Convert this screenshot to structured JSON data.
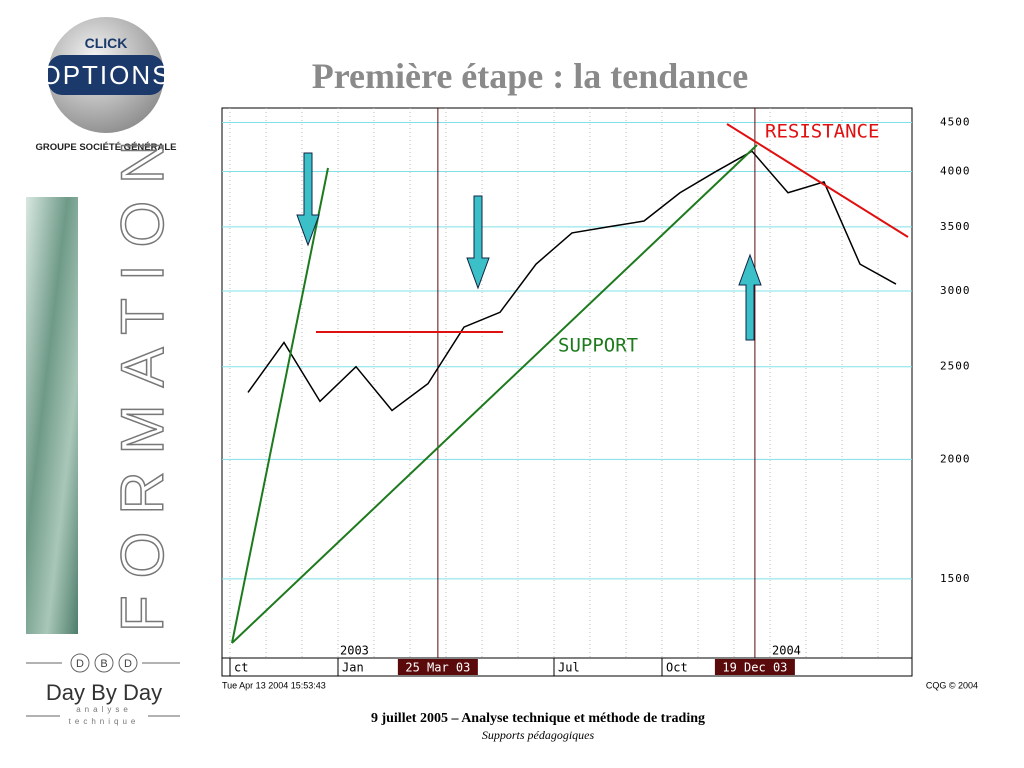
{
  "header": {
    "logo_top": "CLICK",
    "logo_main": "OPTIONS",
    "group": "GROUPE SOCIÉTÉ GÉNÉRALE",
    "title": "Première étape : la tendance"
  },
  "sidebar": {
    "word": "FORMATION",
    "initials": [
      "D",
      "B",
      "D"
    ],
    "brand": "Day By Day",
    "brand_sub1": "analyse",
    "brand_sub2": "technique"
  },
  "chart_data": {
    "type": "line",
    "x": [
      "2002-10",
      "2002-11",
      "2002-12",
      "2003-01",
      "2003-02",
      "2003-03",
      "2003-04",
      "2003-05",
      "2003-06",
      "2003-07",
      "2003-08",
      "2003-09",
      "2003-10",
      "2003-11",
      "2003-12",
      "2004-01",
      "2004-02",
      "2004-03",
      "2004-04"
    ],
    "series": [
      {
        "color": "#000000",
        "values": [
          2350,
          2650,
          2300,
          2500,
          2250,
          2400,
          2750,
          2850,
          3200,
          3450,
          3500,
          3550,
          3800,
          4000,
          4200,
          3800,
          3900,
          3200,
          3050
        ]
      }
    ],
    "ylim": [
      1240,
      4660
    ],
    "log_scale": true,
    "yticks": [
      1500,
      2000,
      2500,
      3000,
      3500,
      4000,
      4500
    ],
    "grid": true,
    "xticks": [
      {
        "value": "2002-10",
        "label": "ct"
      },
      {
        "value": "2003-01",
        "label": "Jan"
      },
      {
        "value": "2003-07",
        "label": "Jul"
      },
      {
        "value": "2003-10",
        "label": "Oct"
      }
    ],
    "year_labels": [
      {
        "value": "2003-01",
        "label": "2003"
      },
      {
        "value": "2004-01",
        "label": "2004"
      }
    ],
    "markers": [
      {
        "value": "2003-03-25",
        "label": "25 Mar 03"
      },
      {
        "value": "2003-12-19",
        "label": "19 Dec 03"
      }
    ],
    "annotations": {
      "resistance": "RESISTANCE",
      "support": "SUPPORT"
    },
    "timestamp": "Tue Apr 13 2004 15:53:43",
    "source": "CQG © 2004"
  },
  "footer": {
    "line1": "9 juillet 2005 – Analyse technique et méthode de trading",
    "line2": "Supports pédagogiques"
  }
}
